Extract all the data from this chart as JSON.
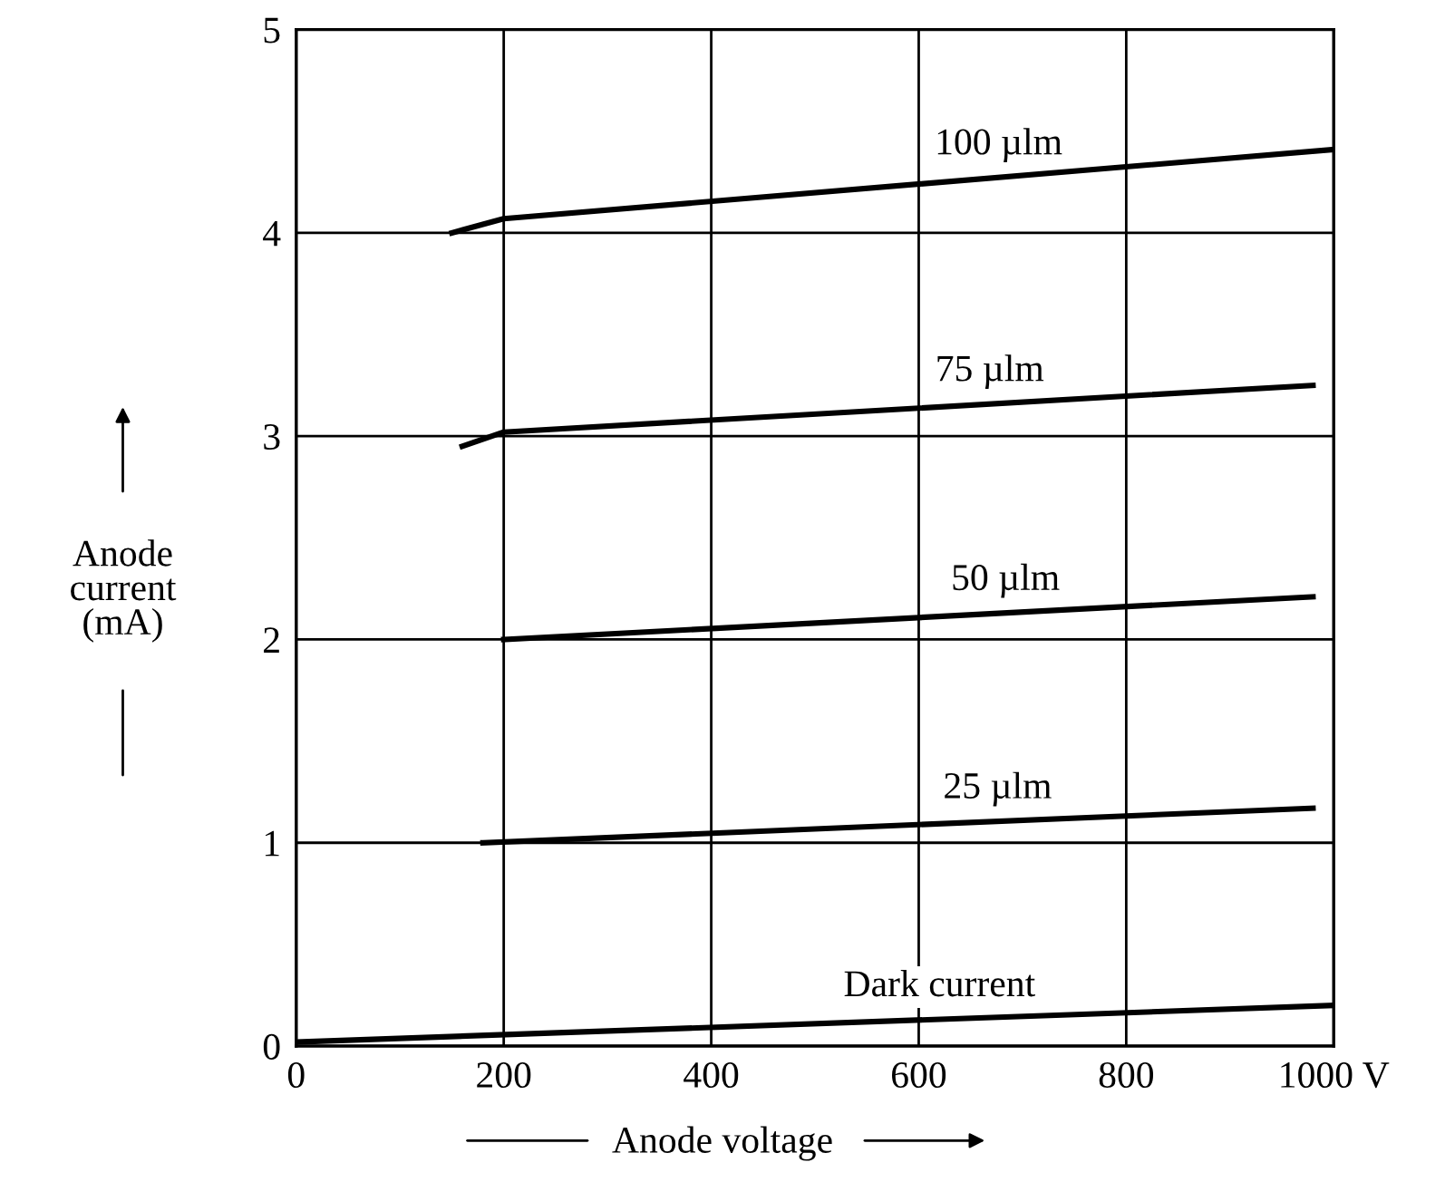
{
  "chart_data": {
    "type": "line",
    "xlabel": "Anode voltage",
    "ylabel": "Anode\ncurrent\n(mA)",
    "xlim": [
      0,
      1000
    ],
    "ylim": [
      0,
      5
    ],
    "xticks": [
      0,
      200,
      400,
      600,
      800,
      {
        "value": 1000,
        "label": "1000 V"
      }
    ],
    "yticks": [
      0,
      1,
      2,
      3,
      4,
      5
    ],
    "grid": true,
    "marker": "none",
    "line_style": "solid",
    "series": [
      {
        "name": "100 µlm",
        "color": "#000000",
        "x": [
          150,
          200,
          1000
        ],
        "values": [
          4.0,
          4.07,
          4.41
        ]
      },
      {
        "name": "75 µlm",
        "color": "#000000",
        "x": [
          160,
          200,
          980
        ],
        "values": [
          2.95,
          3.02,
          3.25
        ]
      },
      {
        "name": "50 µlm",
        "color": "#000000",
        "x": [
          200,
          980
        ],
        "values": [
          2.0,
          2.21
        ]
      },
      {
        "name": "25 µlm",
        "color": "#000000",
        "x": [
          180,
          980
        ],
        "values": [
          1.0,
          1.17
        ]
      },
      {
        "name": "Dark current",
        "color": "#000000",
        "x": [
          0,
          1000
        ],
        "values": [
          0.02,
          0.2
        ]
      }
    ]
  }
}
